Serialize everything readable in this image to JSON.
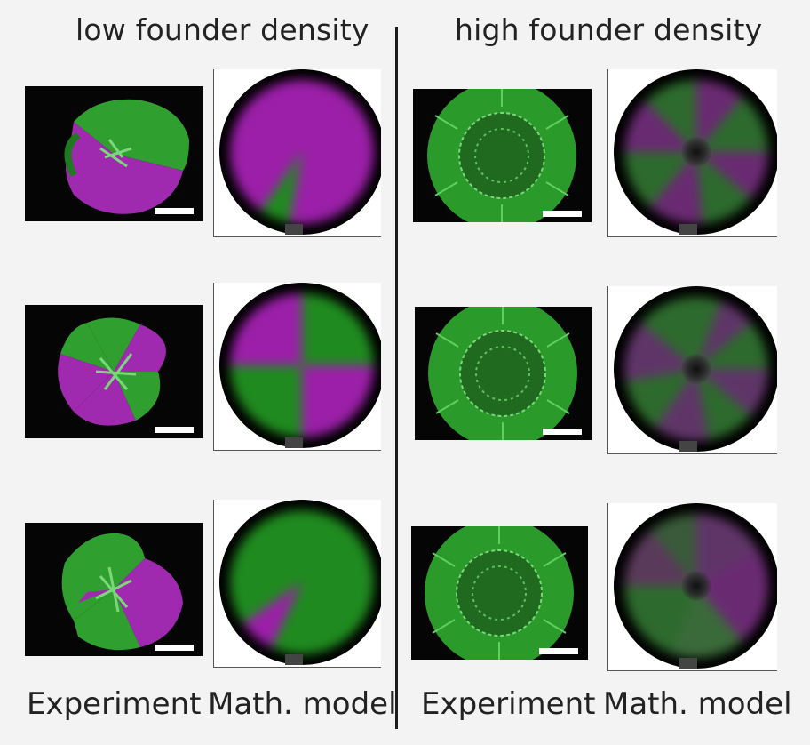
{
  "headers": {
    "left": "low founder density",
    "right": "high founder density"
  },
  "footers": {
    "experiment_left": "Experiment",
    "model_left": "Math. model",
    "experiment_right": "Experiment",
    "model_right": "Math. model"
  },
  "colors": {
    "magenta": "#9b1fa8",
    "green": "#1f8a1f",
    "background": "#050505"
  }
}
